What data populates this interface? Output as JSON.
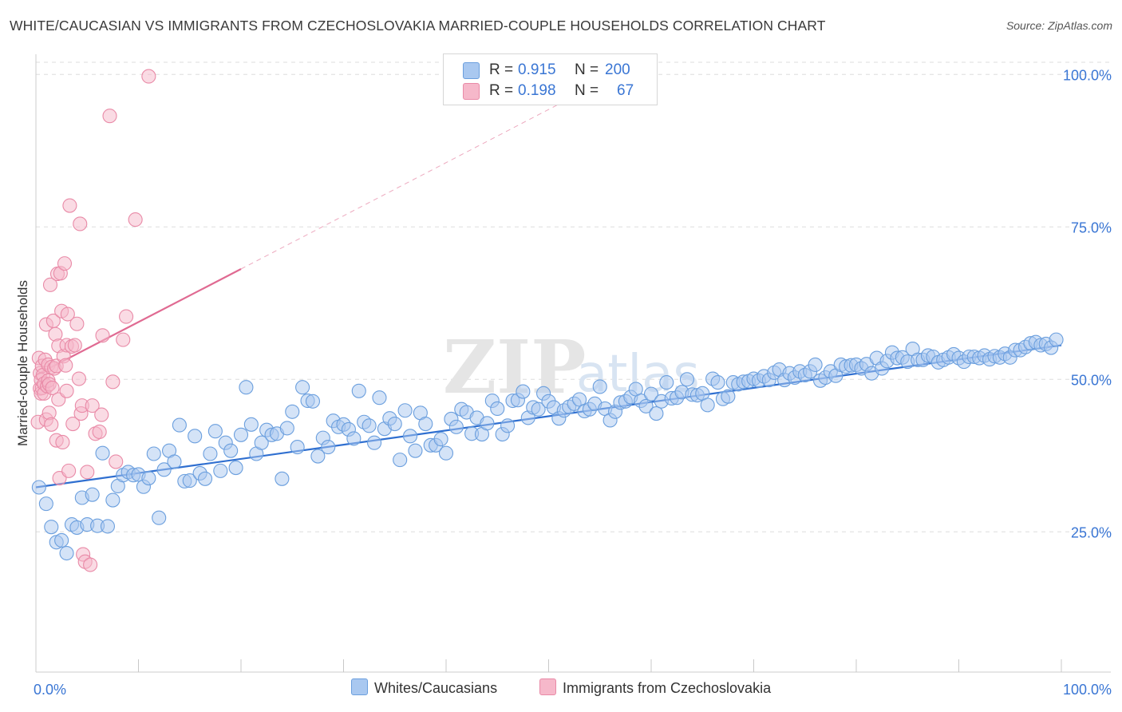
{
  "title": "WHITE/CAUCASIAN VS IMMIGRANTS FROM CZECHOSLOVAKIA MARRIED-COUPLE HOUSEHOLDS CORRELATION CHART",
  "source": "Source: ZipAtlas.com",
  "watermark": {
    "zip": "ZIP",
    "atlas": "atlas"
  },
  "legend": {
    "rows": [
      {
        "r_label": "R =",
        "r_value": "0.915",
        "n_label": "N =",
        "n_value": "200",
        "color": "#a9c8f0"
      },
      {
        "r_label": "R =",
        "r_value": "0.198",
        "n_label": "N =",
        "n_value": "67",
        "color": "#f6b8ca"
      }
    ]
  },
  "colors": {
    "blue_fill": "#a9c8f0",
    "blue_stroke": "#6b9fde",
    "blue_line": "#2f6fd0",
    "pink_fill": "#f6b8ca",
    "pink_stroke": "#e98aa7",
    "pink_line": "#e06a92",
    "axis_text": "#3a76d4",
    "grid": "#dddddd"
  },
  "chart_data": {
    "type": "scatter",
    "title": "WHITE/CAUCASIAN VS IMMIGRANTS FROM CZECHOSLOVAKIA MARRIED-COUPLE HOUSEHOLDS CORRELATION CHART",
    "ylabel": "Married-couple Households",
    "xlabel": "",
    "xlim": [
      0,
      100
    ],
    "ylim": [
      2,
      102
    ],
    "x_tick_labels": [
      "0.0%",
      "100.0%"
    ],
    "y_tick_labels": [
      {
        "value": 25,
        "label": "25.0%"
      },
      {
        "value": 50,
        "label": "50.0%"
      },
      {
        "value": 75,
        "label": "75.0%"
      },
      {
        "value": 100,
        "label": "100.0%"
      }
    ],
    "series": [
      {
        "name": "Whites/Caucasians",
        "R": 0.915,
        "N": 200,
        "trend": {
          "x0": 0,
          "y0": 32.3,
          "x1": 100,
          "y1": 55.6
        },
        "points": [
          [
            0.3,
            32.3
          ],
          [
            1.0,
            29.6
          ],
          [
            1.5,
            25.8
          ],
          [
            2.0,
            23.3
          ],
          [
            2.5,
            23.6
          ],
          [
            3.0,
            21.5
          ],
          [
            3.5,
            26.2
          ],
          [
            4.0,
            25.7
          ],
          [
            4.5,
            30.6
          ],
          [
            5.0,
            26.2
          ],
          [
            5.5,
            31.1
          ],
          [
            6.0,
            26.0
          ],
          [
            6.5,
            37.9
          ],
          [
            7.0,
            25.9
          ],
          [
            7.5,
            30.2
          ],
          [
            8.0,
            32.5
          ],
          [
            8.5,
            34.3
          ],
          [
            9.0,
            34.8
          ],
          [
            9.5,
            34.3
          ],
          [
            10.0,
            34.4
          ],
          [
            10.5,
            32.4
          ],
          [
            11.0,
            33.8
          ],
          [
            11.5,
            37.8
          ],
          [
            12.0,
            27.3
          ],
          [
            12.5,
            35.2
          ],
          [
            13.0,
            38.3
          ],
          [
            13.5,
            36.5
          ],
          [
            14.0,
            42.5
          ],
          [
            14.5,
            33.3
          ],
          [
            15.0,
            33.4
          ],
          [
            15.5,
            40.7
          ],
          [
            16.0,
            34.6
          ],
          [
            16.5,
            33.7
          ],
          [
            17.0,
            37.8
          ],
          [
            17.5,
            41.5
          ],
          [
            18.0,
            35.0
          ],
          [
            18.5,
            39.6
          ],
          [
            19.0,
            38.3
          ],
          [
            19.5,
            35.5
          ],
          [
            20.0,
            40.9
          ],
          [
            20.5,
            48.7
          ],
          [
            21.0,
            42.6
          ],
          [
            21.5,
            37.8
          ],
          [
            22.0,
            39.6
          ],
          [
            22.5,
            41.7
          ],
          [
            23.0,
            40.9
          ],
          [
            23.5,
            41.1
          ],
          [
            24.0,
            33.7
          ],
          [
            24.5,
            42.0
          ],
          [
            25.0,
            44.7
          ],
          [
            25.5,
            38.9
          ],
          [
            26.0,
            48.7
          ],
          [
            26.5,
            46.5
          ],
          [
            27.0,
            46.4
          ],
          [
            27.5,
            37.4
          ],
          [
            28.0,
            40.4
          ],
          [
            28.5,
            38.9
          ],
          [
            29.0,
            43.2
          ],
          [
            29.5,
            42.2
          ],
          [
            30.0,
            42.6
          ],
          [
            30.5,
            41.8
          ],
          [
            31.0,
            40.3
          ],
          [
            31.5,
            48.1
          ],
          [
            32.0,
            43.0
          ],
          [
            32.5,
            42.4
          ],
          [
            33.0,
            39.6
          ],
          [
            33.5,
            47.0
          ],
          [
            34.0,
            41.9
          ],
          [
            34.5,
            43.6
          ],
          [
            35.0,
            42.7
          ],
          [
            35.5,
            36.8
          ],
          [
            36.0,
            44.9
          ],
          [
            36.5,
            40.7
          ],
          [
            37.0,
            38.3
          ],
          [
            37.5,
            44.5
          ],
          [
            38.0,
            42.7
          ],
          [
            38.5,
            39.2
          ],
          [
            39.0,
            39.2
          ],
          [
            39.5,
            40.2
          ],
          [
            40.0,
            37.9
          ],
          [
            40.5,
            43.5
          ],
          [
            41.0,
            42.2
          ],
          [
            41.5,
            45.1
          ],
          [
            42.0,
            44.6
          ],
          [
            42.5,
            41.1
          ],
          [
            43.0,
            43.7
          ],
          [
            43.5,
            41.0
          ],
          [
            44.0,
            42.8
          ],
          [
            44.5,
            46.5
          ],
          [
            45.0,
            45.2
          ],
          [
            45.5,
            41.0
          ],
          [
            46.0,
            42.4
          ],
          [
            46.5,
            46.5
          ],
          [
            47.0,
            46.6
          ],
          [
            47.5,
            48.0
          ],
          [
            48.0,
            43.7
          ],
          [
            48.5,
            45.4
          ],
          [
            49.0,
            45.1
          ],
          [
            49.5,
            47.7
          ],
          [
            50.0,
            46.4
          ],
          [
            50.5,
            45.4
          ],
          [
            51.0,
            43.6
          ],
          [
            51.5,
            44.9
          ],
          [
            52.0,
            45.5
          ],
          [
            52.5,
            46.0
          ],
          [
            53.0,
            46.7
          ],
          [
            53.5,
            44.8
          ],
          [
            54.0,
            45.1
          ],
          [
            54.5,
            46.0
          ],
          [
            55.0,
            48.8
          ],
          [
            55.5,
            45.2
          ],
          [
            56.0,
            43.3
          ],
          [
            56.5,
            44.7
          ],
          [
            57.0,
            46.2
          ],
          [
            57.5,
            46.4
          ],
          [
            58.0,
            47.1
          ],
          [
            58.5,
            48.4
          ],
          [
            59.0,
            46.5
          ],
          [
            59.5,
            45.6
          ],
          [
            60.0,
            47.6
          ],
          [
            60.5,
            44.4
          ],
          [
            61.0,
            46.4
          ],
          [
            61.5,
            49.5
          ],
          [
            62.0,
            46.9
          ],
          [
            62.5,
            47.0
          ],
          [
            63.0,
            47.9
          ],
          [
            63.5,
            50.0
          ],
          [
            64.0,
            47.5
          ],
          [
            64.5,
            47.4
          ],
          [
            65.0,
            47.7
          ],
          [
            65.5,
            45.8
          ],
          [
            66.0,
            50.1
          ],
          [
            66.5,
            49.5
          ],
          [
            67.0,
            46.8
          ],
          [
            67.5,
            47.2
          ],
          [
            68.0,
            49.5
          ],
          [
            68.5,
            49.2
          ],
          [
            69.0,
            49.6
          ],
          [
            69.5,
            49.7
          ],
          [
            70.0,
            50.1
          ],
          [
            70.5,
            49.8
          ],
          [
            71.0,
            50.5
          ],
          [
            71.5,
            49.9
          ],
          [
            72.0,
            51.1
          ],
          [
            72.5,
            51.6
          ],
          [
            73.0,
            49.9
          ],
          [
            73.5,
            51.0
          ],
          [
            74.0,
            50.3
          ],
          [
            74.5,
            51.3
          ],
          [
            75.0,
            50.7
          ],
          [
            75.5,
            51.3
          ],
          [
            76.0,
            52.4
          ],
          [
            76.5,
            49.8
          ],
          [
            77.0,
            50.3
          ],
          [
            77.5,
            51.3
          ],
          [
            78.0,
            50.6
          ],
          [
            78.5,
            52.4
          ],
          [
            79.0,
            52.1
          ],
          [
            79.5,
            52.3
          ],
          [
            80.0,
            52.4
          ],
          [
            80.5,
            51.8
          ],
          [
            81.0,
            52.5
          ],
          [
            81.5,
            51.0
          ],
          [
            82.0,
            53.5
          ],
          [
            82.5,
            51.8
          ],
          [
            83.0,
            53.0
          ],
          [
            83.5,
            54.4
          ],
          [
            84.0,
            53.5
          ],
          [
            84.5,
            53.6
          ],
          [
            85.0,
            52.9
          ],
          [
            85.5,
            55.0
          ],
          [
            86.0,
            53.2
          ],
          [
            86.5,
            53.2
          ],
          [
            87.0,
            53.9
          ],
          [
            87.5,
            53.7
          ],
          [
            88.0,
            52.8
          ],
          [
            88.5,
            53.2
          ],
          [
            89.0,
            53.6
          ],
          [
            89.5,
            54.1
          ],
          [
            90.0,
            53.5
          ],
          [
            90.5,
            52.9
          ],
          [
            91.0,
            53.7
          ],
          [
            91.5,
            53.7
          ],
          [
            92.0,
            53.5
          ],
          [
            92.5,
            53.9
          ],
          [
            93.0,
            53.3
          ],
          [
            93.5,
            53.8
          ],
          [
            94.0,
            53.6
          ],
          [
            94.5,
            54.2
          ],
          [
            95.0,
            53.6
          ],
          [
            95.5,
            54.8
          ],
          [
            96.0,
            54.8
          ],
          [
            96.5,
            55.3
          ],
          [
            97.0,
            55.9
          ],
          [
            97.5,
            56.1
          ],
          [
            98.0,
            55.6
          ],
          [
            98.5,
            55.8
          ],
          [
            99.0,
            55.2
          ],
          [
            99.5,
            56.5
          ]
        ]
      },
      {
        "name": "Immigrants from Czechoslovakia",
        "R": 0.198,
        "N": 67,
        "trend": {
          "x0": 0,
          "y0": 50.7,
          "x1": 20,
          "y1": 68.1
        },
        "trend_dashed_to": {
          "x": 52,
          "y": 96.0
        },
        "points": [
          [
            0.2,
            43.0
          ],
          [
            0.3,
            53.5
          ],
          [
            0.4,
            51.0
          ],
          [
            0.4,
            48.5
          ],
          [
            0.5,
            47.7
          ],
          [
            0.5,
            49.9
          ],
          [
            0.6,
            52.2
          ],
          [
            0.6,
            48.6
          ],
          [
            0.7,
            50.7
          ],
          [
            0.8,
            49.3
          ],
          [
            0.8,
            47.7
          ],
          [
            0.9,
            53.2
          ],
          [
            1.0,
            59.0
          ],
          [
            1.0,
            43.4
          ],
          [
            1.1,
            48.9
          ],
          [
            1.2,
            52.4
          ],
          [
            1.2,
            49.8
          ],
          [
            1.3,
            49.2
          ],
          [
            1.3,
            44.5
          ],
          [
            1.4,
            65.5
          ],
          [
            1.5,
            52.0
          ],
          [
            1.5,
            42.6
          ],
          [
            1.6,
            48.6
          ],
          [
            1.7,
            59.6
          ],
          [
            1.8,
            51.8
          ],
          [
            1.9,
            57.4
          ],
          [
            2.0,
            52.2
          ],
          [
            2.0,
            40.0
          ],
          [
            2.1,
            67.3
          ],
          [
            2.2,
            55.5
          ],
          [
            2.2,
            46.7
          ],
          [
            2.3,
            33.8
          ],
          [
            2.4,
            67.4
          ],
          [
            2.5,
            61.2
          ],
          [
            2.6,
            39.7
          ],
          [
            2.7,
            53.8
          ],
          [
            2.8,
            69.0
          ],
          [
            2.9,
            52.3
          ],
          [
            3.0,
            55.6
          ],
          [
            3.0,
            48.1
          ],
          [
            3.1,
            60.7
          ],
          [
            3.2,
            35.0
          ],
          [
            3.3,
            78.5
          ],
          [
            3.5,
            55.4
          ],
          [
            3.6,
            42.7
          ],
          [
            3.8,
            55.6
          ],
          [
            4.0,
            59.1
          ],
          [
            4.2,
            50.1
          ],
          [
            4.3,
            75.5
          ],
          [
            4.4,
            44.4
          ],
          [
            4.5,
            45.7
          ],
          [
            4.6,
            21.3
          ],
          [
            4.8,
            20.1
          ],
          [
            5.0,
            34.8
          ],
          [
            5.3,
            19.6
          ],
          [
            5.5,
            45.7
          ],
          [
            5.8,
            41.1
          ],
          [
            6.2,
            41.4
          ],
          [
            6.4,
            44.2
          ],
          [
            7.2,
            93.2
          ],
          [
            6.5,
            57.2
          ],
          [
            7.5,
            49.6
          ],
          [
            7.8,
            36.5
          ],
          [
            8.5,
            56.5
          ],
          [
            8.8,
            60.3
          ],
          [
            9.7,
            76.2
          ],
          [
            11.0,
            99.7
          ]
        ]
      }
    ]
  },
  "bottom_legend": [
    {
      "label": "Whites/Caucasians",
      "color": "#a9c8f0"
    },
    {
      "label": "Immigrants from Czechoslovakia",
      "color": "#f6b8ca"
    }
  ]
}
